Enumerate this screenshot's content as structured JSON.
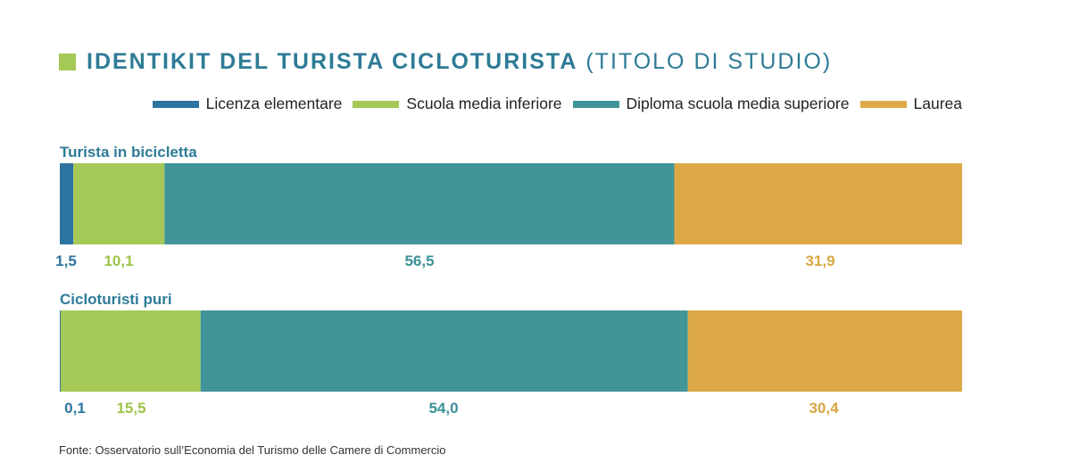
{
  "title": {
    "main": "IDENTIKIT DEL TURISTA CICLOTURISTA",
    "sub": "(TITOLO DI STUDIO)"
  },
  "colors": {
    "accent_square": "#A5C956",
    "title": "#2E7B96"
  },
  "chart_data": {
    "type": "bar",
    "orientation": "horizontal",
    "stacked": true,
    "legend_position": "top-right",
    "categories": [
      "Turista in bicicletta",
      "Cicloturisti puri"
    ],
    "series": [
      {
        "name": "Licenza elementare",
        "color": "#2E74A0",
        "label_color": "#2E74A0",
        "values": [
          1.5,
          0.1
        ],
        "labels": [
          "1,5",
          "0,1"
        ]
      },
      {
        "name": "Scuola media inferiore",
        "color": "#A5C956",
        "label_color": "#9CC44A",
        "values": [
          10.1,
          15.5
        ],
        "labels": [
          "10,1",
          "15,5"
        ]
      },
      {
        "name": "Diploma scuola media superiore",
        "color": "#419598",
        "label_color": "#3B9196",
        "values": [
          56.5,
          54.0
        ],
        "labels": [
          "56,5",
          "54,0"
        ]
      },
      {
        "name": "Laurea",
        "color": "#DCA946",
        "label_color": "#D9A641",
        "values": [
          31.9,
          30.4
        ],
        "labels": [
          "31,9",
          "30,4"
        ]
      }
    ]
  },
  "source": "Fonte: Osservatorio sull’Economia del Turismo delle Camere di Commercio"
}
